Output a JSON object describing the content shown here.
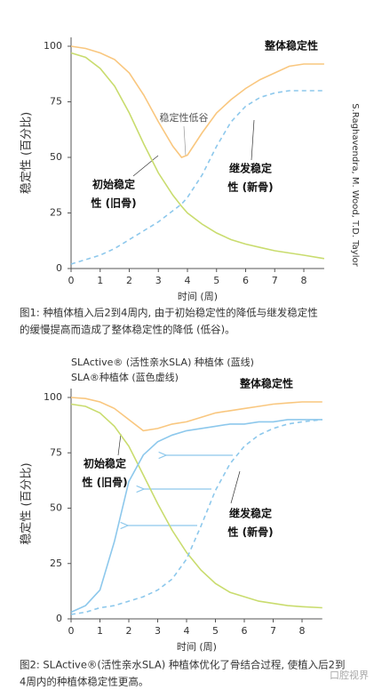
{
  "chart_data": [
    {
      "type": "line",
      "source": "S.Raghavendra, M. Wood, T.D. Taylor",
      "x_label": "时间 (周)",
      "y_label": "稳定性 (百分比)",
      "annotation": "稳定性低谷",
      "caption": [
        "图1: 种植体植入后2到4周内, 由于初始稳定性的降低与继发稳定性",
        "的缓慢提高而造成了整体稳定性的降低 (低谷)。"
      ],
      "x": [
        0,
        0.5,
        1,
        1.5,
        2,
        2.5,
        3,
        3.5,
        3.8,
        4,
        4.5,
        5,
        5.5,
        6,
        6.5,
        7,
        7.5,
        8,
        8.7
      ],
      "series": [
        {
          "label": [
            "整体稳定性"
          ],
          "color": "#f9c77f",
          "dashed": false,
          "values": [
            100,
            99,
            97,
            94,
            88,
            78,
            66,
            55,
            50,
            51,
            61,
            70,
            76,
            81,
            85,
            88,
            91,
            92,
            92
          ]
        },
        {
          "label": [
            "初始稳定",
            "性 (旧骨)"
          ],
          "color": "#c9dc6e",
          "dashed": false,
          "values": [
            97,
            95,
            90,
            82,
            70,
            56,
            43,
            33,
            28,
            25,
            20,
            16,
            13,
            11,
            9.5,
            8,
            7,
            6,
            4.5
          ]
        },
        {
          "label": [
            "继发稳定",
            "性 (新骨)"
          ],
          "color": "#8dc8ec",
          "dashed": true,
          "values": [
            2,
            4,
            6,
            9,
            13,
            17,
            21,
            26,
            29,
            32,
            42,
            55,
            66,
            73,
            77,
            79,
            80,
            80,
            80
          ]
        }
      ],
      "xlim": [
        0,
        8.7
      ],
      "xticks": [
        0,
        1,
        2,
        3,
        4,
        5,
        6,
        7,
        8
      ],
      "ylim": [
        0,
        104
      ],
      "yticks": [
        0,
        25,
        50,
        75,
        100
      ]
    },
    {
      "type": "line",
      "subtitle": [
        "SLActive® (活性亲水SLA) 种植体 (蓝线)",
        "SLA®种植体 (蓝色虚线)"
      ],
      "x_label": "时间 (周)",
      "y_label": "稳定性 (百分比)",
      "caption": [
        "图2: SLActive®(活性亲水SLA) 种植体优化了骨结合过程, 使植入后2到",
        "4周内的种植体稳定性更高。"
      ],
      "x": [
        0,
        0.5,
        1,
        1.5,
        2,
        2.5,
        3,
        3.5,
        4,
        4.5,
        5,
        5.5,
        6,
        6.5,
        7,
        7.5,
        8,
        8.7
      ],
      "series": [
        {
          "label": [
            "整体稳定性"
          ],
          "color": "#f9c77f",
          "dashed": false,
          "values": [
            100,
            99.5,
            98,
            95,
            90,
            85,
            86,
            88,
            89,
            91,
            93,
            94,
            95,
            96,
            97,
            97.5,
            98,
            98
          ]
        },
        {
          "label": [
            "初始稳定",
            "性 (旧骨)"
          ],
          "color": "#c9dc6e",
          "dashed": false,
          "values": [
            97,
            96,
            93,
            87,
            78,
            65,
            52,
            40,
            30,
            22,
            16,
            12,
            10,
            8,
            7,
            6,
            5.5,
            5
          ]
        },
        {
          "label": [
            "继发稳定",
            "性 (新骨)"
          ],
          "color": "#8dc8ec",
          "dashed": true,
          "values": [
            2,
            3,
            5,
            6,
            8,
            10,
            13,
            18,
            27,
            42,
            58,
            70,
            78,
            83,
            86,
            88,
            89,
            90
          ]
        },
        {
          "color": "#8dc8ec",
          "dashed": false,
          "values": [
            3,
            6,
            13,
            35,
            62,
            74,
            80,
            83,
            85,
            86,
            87,
            88,
            88,
            89,
            89,
            90,
            90,
            90
          ]
        }
      ],
      "xlim": [
        0,
        8.7
      ],
      "xticks": [
        0,
        1,
        2,
        3,
        4,
        5,
        6,
        7,
        8
      ],
      "ylim": [
        0,
        104
      ],
      "yticks": [
        0,
        25,
        50,
        75,
        100
      ]
    }
  ],
  "watermark": "口腔视界"
}
